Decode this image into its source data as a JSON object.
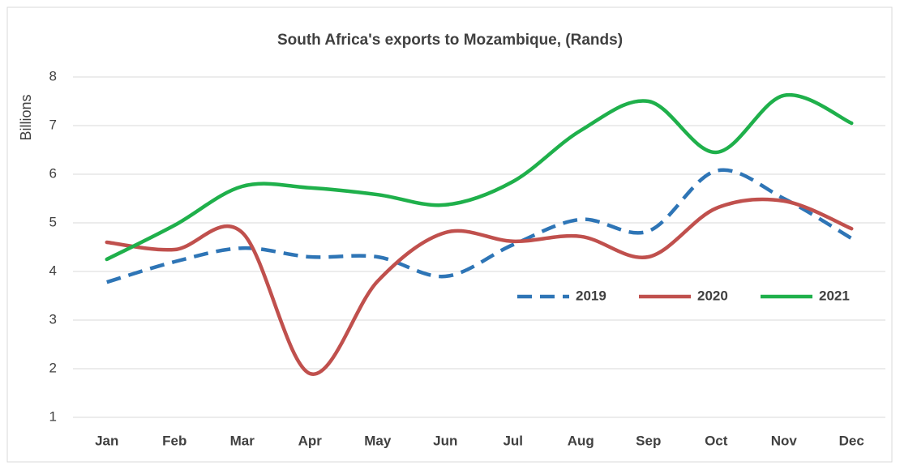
{
  "chart_data": {
    "type": "line",
    "title": "South Africa's exports to Mozambique, (Rands)",
    "ylabel": "Billions",
    "categories": [
      "Jan",
      "Feb",
      "Mar",
      "Apr",
      "May",
      "Jun",
      "Jul",
      "Aug",
      "Sep",
      "Oct",
      "Nov",
      "Dec"
    ],
    "series": [
      {
        "name": "2019",
        "color": "#2e75b6",
        "dashed": true,
        "values": [
          3.78,
          4.2,
          4.48,
          4.3,
          4.3,
          3.9,
          4.55,
          5.07,
          4.83,
          6.07,
          5.5,
          4.68
        ]
      },
      {
        "name": "2020",
        "color": "#c0504d",
        "dashed": false,
        "values": [
          4.6,
          4.45,
          4.8,
          1.9,
          3.8,
          4.8,
          4.62,
          4.72,
          4.3,
          5.3,
          5.45,
          4.88
        ]
      },
      {
        "name": "2021",
        "color": "#1fb04b",
        "dashed": false,
        "values": [
          4.25,
          4.95,
          5.75,
          5.72,
          5.58,
          5.37,
          5.85,
          6.9,
          7.5,
          6.45,
          7.62,
          7.05
        ]
      }
    ],
    "ylim": [
      1,
      8
    ],
    "yticks": [
      1,
      2,
      3,
      4,
      5,
      6,
      7,
      8
    ],
    "grid": true,
    "smooth": true
  }
}
